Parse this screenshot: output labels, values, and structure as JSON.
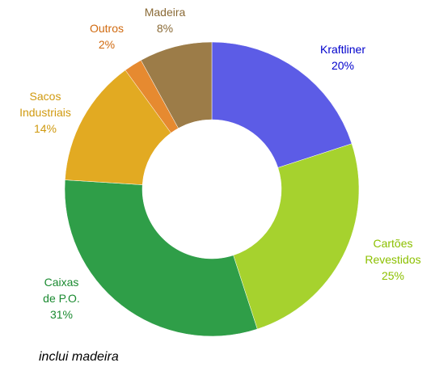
{
  "chart_data": {
    "type": "donut",
    "categories": [
      "Kraftliner",
      "Cartões\nRevestidos",
      "Caixas\nde P.O.",
      "Sacos\nIndustriais",
      "Outros",
      "Madeira"
    ],
    "values": [
      20,
      25,
      31,
      14,
      2,
      8
    ],
    "value_labels": [
      "20%",
      "25%",
      "31%",
      "14%",
      "2%",
      "8%"
    ],
    "colors": [
      "#5c5ce6",
      "#a6d22e",
      "#2f9e48",
      "#e2aa22",
      "#e68a30",
      "#9c7c48"
    ],
    "label_colors": [
      "#0000cc",
      "#8cc000",
      "#1a8a30",
      "#d09a10",
      "#d06a10",
      "#8a6a36"
    ],
    "footnote": "inclui madeira"
  }
}
